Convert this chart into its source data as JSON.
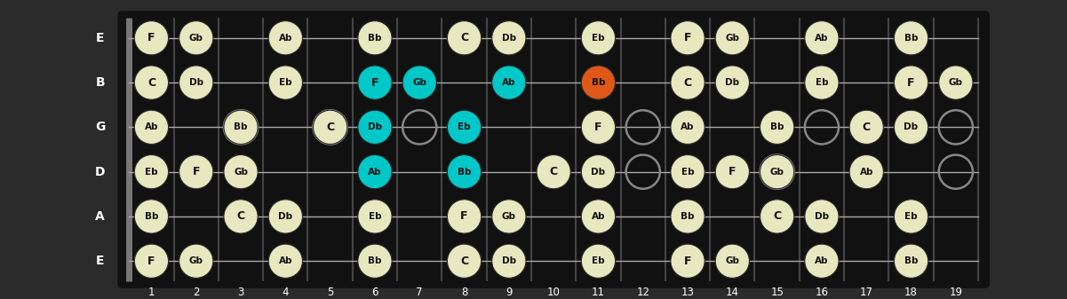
{
  "bg_color": "#2b2b2b",
  "fretboard_color": "#111111",
  "fret_bar_color": "#444444",
  "string_color": "#aaaaaa",
  "note_color_normal": "#e8e8c0",
  "note_color_cyan": "#00c8c8",
  "note_color_orange": "#e05818",
  "note_text_color": "#111111",
  "open_circle_color": "#888888",
  "string_labels": [
    "E",
    "B",
    "G",
    "D",
    "A",
    "E"
  ],
  "fret_numbers": [
    1,
    2,
    3,
    4,
    5,
    6,
    7,
    8,
    9,
    10,
    11,
    12,
    13,
    14,
    15,
    16,
    17,
    18,
    19
  ],
  "num_frets": 19,
  "num_strings": 6,
  "notes": {
    "E_high": {
      "1": "F",
      "2": "Gb",
      "4": "Ab",
      "6": "Bb",
      "8": "C",
      "9": "Db",
      "11": "Eb",
      "13": "F",
      "14": "Gb",
      "16": "Ab",
      "18": "Bb"
    },
    "B": {
      "1": "C",
      "2": "Db",
      "4": "Eb",
      "6": "F",
      "7": "Gb",
      "9": "Ab",
      "11": "Bb",
      "13": "C",
      "14": "Db",
      "16": "Eb",
      "18": "F",
      "19": "Gb"
    },
    "G": {
      "1": "Ab",
      "3": "Bb",
      "5": "C",
      "6": "Db",
      "8": "Eb",
      "11": "F",
      "13": "Ab",
      "15": "Bb",
      "17": "C",
      "18": "Db"
    },
    "D": {
      "1": "Eb",
      "2": "F",
      "3": "Gb",
      "6": "Ab",
      "8": "Bb",
      "10": "C",
      "11": "Db",
      "13": "Eb",
      "14": "F",
      "15": "Gb",
      "17": "Ab"
    },
    "A": {
      "1": "Bb",
      "3": "C",
      "4": "Db",
      "6": "Eb",
      "8": "F",
      "9": "Gb",
      "11": "Ab",
      "13": "Bb",
      "15": "C",
      "16": "Db",
      "18": "Eb"
    },
    "E_low": {
      "1": "F",
      "2": "Gb",
      "4": "Ab",
      "6": "Bb",
      "8": "C",
      "9": "Db",
      "11": "Eb",
      "13": "F",
      "14": "Gb",
      "16": "Ab",
      "18": "Bb"
    }
  },
  "open_circles": {
    "G": [
      3,
      5,
      7,
      12,
      16,
      19
    ],
    "D": [
      12,
      15,
      19
    ]
  },
  "cyan_notes": [
    [
      "B",
      6
    ],
    [
      "B",
      7
    ],
    [
      "B",
      9
    ],
    [
      "G",
      6
    ],
    [
      "G",
      8
    ],
    [
      "D",
      6
    ],
    [
      "D",
      8
    ]
  ],
  "orange_notes": [
    [
      "B",
      11
    ]
  ],
  "string_map": {
    "E_high": 0,
    "B": 1,
    "G": 2,
    "D": 3,
    "A": 4,
    "E_low": 5
  }
}
